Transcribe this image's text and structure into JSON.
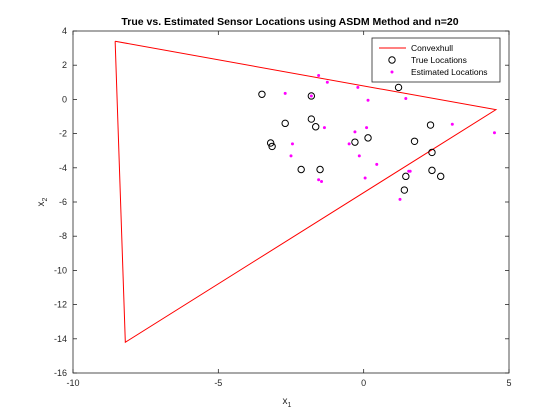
{
  "chart_data": {
    "type": "scatter",
    "title": "True vs. Estimated Sensor Locations using ASDM Method and n=20",
    "xlabel": "x",
    "xlabel_sub": "1",
    "ylabel": "x",
    "ylabel_sub": "2",
    "xlim": [
      -10,
      5
    ],
    "ylim": [
      -16,
      4
    ],
    "xticks": [
      -10,
      -5,
      0,
      5
    ],
    "yticks": [
      -16,
      -14,
      -12,
      -10,
      -8,
      -6,
      -4,
      -2,
      0,
      2,
      4
    ],
    "grid": false,
    "legend_position": "top-right",
    "series": [
      {
        "name": "Convexhull",
        "kind": "line",
        "color": "#ff0000",
        "x": [
          -8.55,
          4.55,
          -8.2,
          -8.55
        ],
        "y": [
          3.4,
          -0.6,
          -14.2,
          3.4
        ]
      },
      {
        "name": "True Locations",
        "kind": "marker-circle",
        "color": "#000000",
        "x": [
          -3.5,
          -1.8,
          -2.7,
          -1.8,
          -1.65,
          -3.2,
          -3.15,
          -1.5,
          -2.15,
          -0.3,
          0.15,
          1.2,
          1.75,
          2.3,
          2.35,
          2.35,
          2.65,
          1.45,
          1.4
        ],
        "y": [
          0.3,
          0.2,
          -1.4,
          -1.15,
          -1.6,
          -2.55,
          -2.75,
          -4.1,
          -4.1,
          -2.5,
          -2.25,
          0.7,
          -2.45,
          -1.5,
          -3.1,
          -4.15,
          -4.5,
          -4.5,
          -5.3
        ]
      },
      {
        "name": "Estimated Locations",
        "kind": "marker-dot",
        "color": "#ff00ff",
        "x": [
          -1.55,
          -1.25,
          -2.7,
          -1.8,
          -0.2,
          0.15,
          -0.3,
          -2.45,
          -1.35,
          0.1,
          -2.5,
          -0.5,
          -0.15,
          -1.55,
          -1.45,
          0.45,
          0.05,
          1.45,
          1.55,
          1.6,
          3.05,
          4.5,
          1.25
        ],
        "y": [
          1.4,
          1.0,
          0.35,
          0.2,
          0.7,
          -0.05,
          -1.9,
          -2.6,
          -1.65,
          -1.65,
          -3.3,
          -2.6,
          -3.3,
          -4.7,
          -4.8,
          -3.8,
          -4.6,
          0.05,
          -4.2,
          -4.2,
          -1.45,
          -1.95,
          -5.85
        ]
      }
    ]
  }
}
